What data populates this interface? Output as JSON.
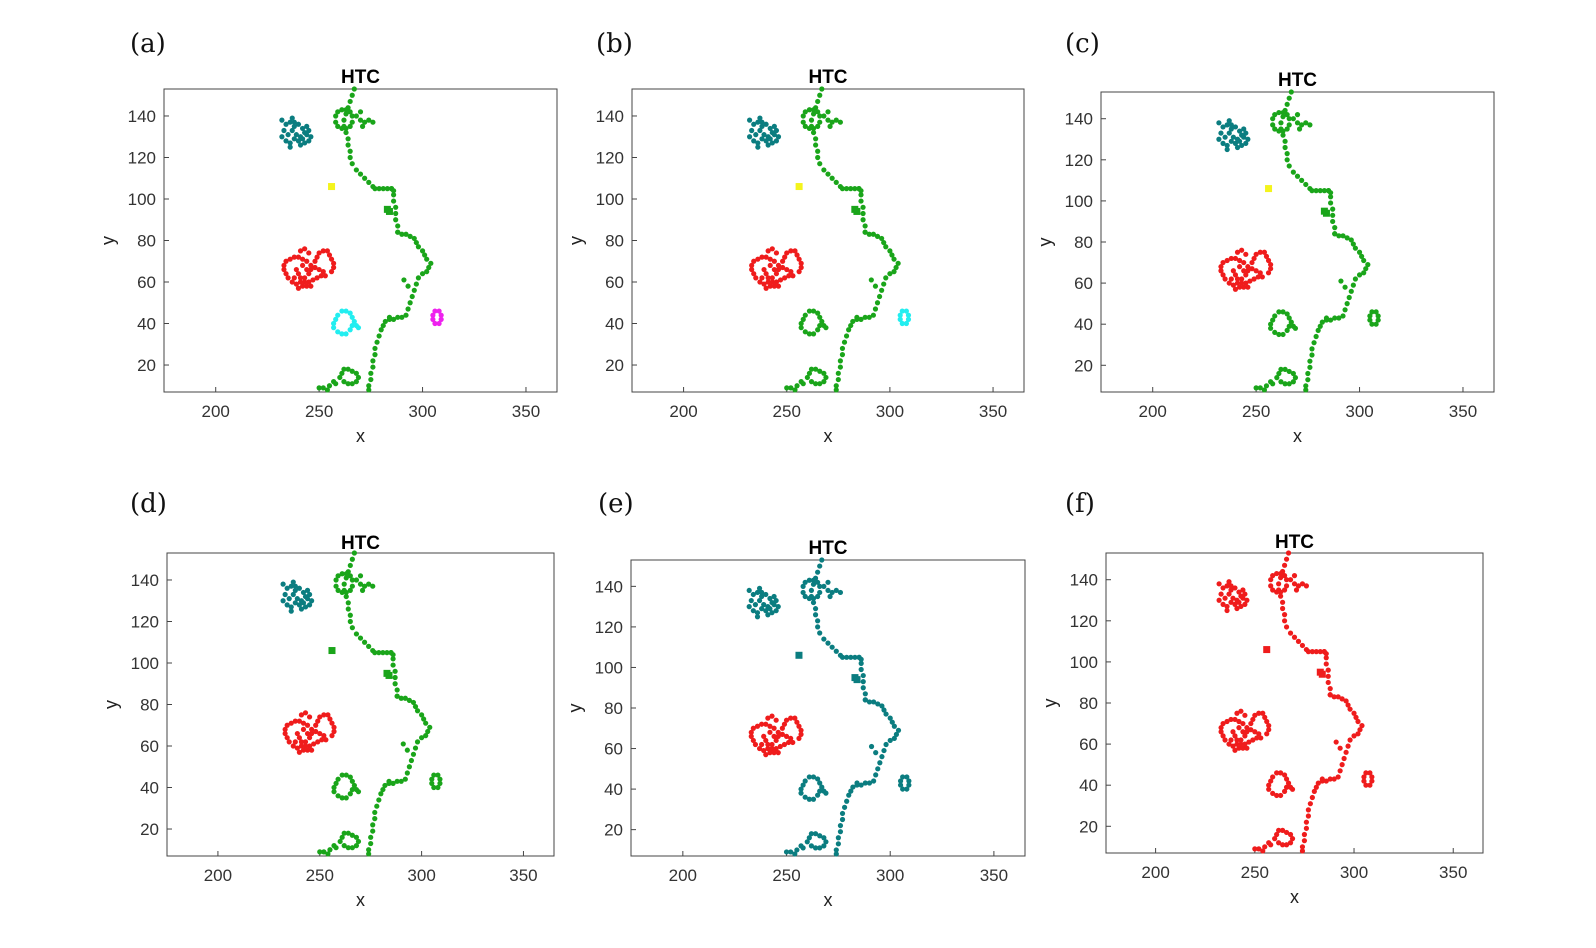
{
  "colors": {
    "green": "#1aa51a",
    "teal": "#0b7d80",
    "red": "#ef1c1c",
    "yellow": "#f4f41c",
    "cyan": "#22eef0",
    "magenta": "#ee22ee"
  },
  "chart_data": [
    {
      "type": "scatter",
      "panel_label": "(a)",
      "title": "HTC",
      "xlabel": "x",
      "ylabel": "y",
      "xlim": [
        175,
        365
      ],
      "ylim": [
        7,
        153
      ],
      "xticks": [
        "200",
        "250",
        "300",
        "350"
      ],
      "yticks": [
        "20",
        "40",
        "60",
        "80",
        "100",
        "120",
        "140"
      ],
      "grid": false,
      "clusters": {
        "teal_blob": "teal",
        "green_line": "green",
        "yellow_dot": "yellow",
        "small_square": "green",
        "red_blob": "red",
        "left_ring": "cyan",
        "right_ring": "magenta",
        "bottom_ring": "green"
      }
    },
    {
      "type": "scatter",
      "panel_label": "(b)",
      "title": "HTC",
      "xlabel": "x",
      "ylabel": "y",
      "xlim": [
        175,
        365
      ],
      "ylim": [
        7,
        153
      ],
      "xticks": [
        "200",
        "250",
        "300",
        "350"
      ],
      "yticks": [
        "20",
        "40",
        "60",
        "80",
        "100",
        "120",
        "140"
      ],
      "grid": false,
      "clusters": {
        "teal_blob": "teal",
        "green_line": "green",
        "yellow_dot": "yellow",
        "small_square": "green",
        "red_blob": "red",
        "left_ring": "green",
        "right_ring": "cyan",
        "bottom_ring": "green"
      }
    },
    {
      "type": "scatter",
      "panel_label": "(c)",
      "title": "HTC",
      "xlabel": "x",
      "ylabel": "y",
      "xlim": [
        175,
        365
      ],
      "ylim": [
        7,
        153
      ],
      "xticks": [
        "200",
        "250",
        "300",
        "350"
      ],
      "yticks": [
        "20",
        "40",
        "60",
        "80",
        "100",
        "120",
        "140"
      ],
      "grid": false,
      "clusters": {
        "teal_blob": "teal",
        "green_line": "green",
        "yellow_dot": "yellow",
        "small_square": "green",
        "red_blob": "red",
        "left_ring": "green",
        "right_ring": "green",
        "bottom_ring": "green"
      }
    },
    {
      "type": "scatter",
      "panel_label": "(d)",
      "title": "HTC",
      "xlabel": "x",
      "ylabel": "y",
      "xlim": [
        175,
        365
      ],
      "ylim": [
        7,
        153
      ],
      "xticks": [
        "200",
        "250",
        "300",
        "350"
      ],
      "yticks": [
        "20",
        "40",
        "60",
        "80",
        "100",
        "120",
        "140"
      ],
      "grid": false,
      "clusters": {
        "teal_blob": "teal",
        "green_line": "green",
        "yellow_dot": "green",
        "small_square": "green",
        "red_blob": "red",
        "left_ring": "green",
        "right_ring": "green",
        "bottom_ring": "green"
      }
    },
    {
      "type": "scatter",
      "panel_label": "(e)",
      "title": "HTC",
      "xlabel": "x",
      "ylabel": "y",
      "xlim": [
        175,
        365
      ],
      "ylim": [
        7,
        153
      ],
      "xticks": [
        "200",
        "250",
        "300",
        "350"
      ],
      "yticks": [
        "20",
        "40",
        "60",
        "80",
        "100",
        "120",
        "140"
      ],
      "grid": false,
      "clusters": {
        "teal_blob": "teal",
        "green_line": "teal",
        "yellow_dot": "teal",
        "small_square": "teal",
        "red_blob": "red",
        "left_ring": "teal",
        "right_ring": "teal",
        "bottom_ring": "teal"
      }
    },
    {
      "type": "scatter",
      "panel_label": "(f)",
      "title": "HTC",
      "xlabel": "x",
      "ylabel": "y",
      "xlim": [
        175,
        365
      ],
      "ylim": [
        7,
        153
      ],
      "xticks": [
        "200",
        "250",
        "300",
        "350"
      ],
      "yticks": [
        "20",
        "40",
        "60",
        "80",
        "100",
        "120",
        "140"
      ],
      "grid": false,
      "clusters": {
        "teal_blob": "red",
        "green_line": "red",
        "yellow_dot": "red",
        "small_square": "red",
        "red_blob": "red",
        "left_ring": "red",
        "right_ring": "red",
        "bottom_ring": "red"
      }
    }
  ],
  "points": {
    "teal_blob": [
      [
        232,
        138
      ],
      [
        234,
        136
      ],
      [
        236,
        137
      ],
      [
        238,
        135
      ],
      [
        240,
        136
      ],
      [
        242,
        134
      ],
      [
        244,
        135
      ],
      [
        243,
        132
      ],
      [
        241,
        130
      ],
      [
        239,
        131
      ],
      [
        237,
        133
      ],
      [
        235,
        131
      ],
      [
        233,
        133
      ],
      [
        232,
        130
      ],
      [
        234,
        128
      ],
      [
        236,
        127
      ],
      [
        238,
        129
      ],
      [
        240,
        128
      ],
      [
        242,
        129
      ],
      [
        244,
        131
      ],
      [
        245,
        133
      ],
      [
        246,
        130
      ],
      [
        245,
        128
      ],
      [
        243,
        127
      ],
      [
        241,
        126
      ],
      [
        236,
        125
      ],
      [
        238,
        137
      ],
      [
        237,
        139
      ]
    ],
    "green_line": [
      [
        267,
        153
      ],
      [
        266,
        150
      ],
      [
        265,
        147
      ],
      [
        264,
        144
      ],
      [
        263,
        141
      ],
      [
        262,
        138
      ],
      [
        262,
        135
      ],
      [
        263,
        132
      ],
      [
        264,
        129
      ],
      [
        264,
        126
      ],
      [
        265,
        123
      ],
      [
        265,
        120
      ],
      [
        266,
        117
      ],
      [
        268,
        114
      ],
      [
        270,
        112
      ],
      [
        272,
        110
      ],
      [
        274,
        108
      ],
      [
        276,
        106
      ],
      [
        277,
        105
      ],
      [
        279,
        105
      ],
      [
        281,
        105
      ],
      [
        283,
        105
      ],
      [
        285,
        105
      ],
      [
        286,
        102
      ],
      [
        286,
        99
      ],
      [
        287,
        96
      ],
      [
        287,
        93
      ],
      [
        287,
        90
      ],
      [
        288,
        87
      ],
      [
        288,
        84
      ],
      [
        290,
        83
      ],
      [
        292,
        83
      ],
      [
        294,
        82
      ],
      [
        296,
        81
      ],
      [
        297,
        79
      ],
      [
        298,
        77
      ],
      [
        300,
        75
      ],
      [
        301,
        73
      ],
      [
        302,
        71
      ],
      [
        304,
        69
      ],
      [
        303,
        67
      ],
      [
        302,
        65
      ],
      [
        300,
        64
      ],
      [
        298,
        62
      ],
      [
        297,
        59
      ],
      [
        296,
        56
      ],
      [
        295,
        53
      ],
      [
        294,
        50
      ],
      [
        293,
        47
      ],
      [
        292,
        44
      ],
      [
        290,
        43
      ],
      [
        288,
        43
      ],
      [
        286,
        42
      ],
      [
        284,
        42
      ],
      [
        282,
        41
      ],
      [
        281,
        39
      ],
      [
        280,
        37
      ],
      [
        279,
        34
      ],
      [
        278,
        31
      ],
      [
        277,
        28
      ],
      [
        277,
        25
      ],
      [
        276,
        22
      ],
      [
        276,
        19
      ],
      [
        275,
        16
      ],
      [
        275,
        13
      ],
      [
        274,
        10
      ],
      [
        274,
        8
      ],
      [
        288,
        84
      ],
      [
        284,
        43
      ],
      [
        285,
        105
      ],
      [
        286,
        104
      ],
      [
        291,
        61
      ],
      [
        293,
        58
      ]
    ],
    "green_upper_ring": [
      [
        258,
        140
      ],
      [
        259,
        142
      ],
      [
        261,
        143
      ],
      [
        263,
        143
      ],
      [
        265,
        142
      ],
      [
        266,
        140
      ],
      [
        266,
        137
      ],
      [
        265,
        135
      ],
      [
        263,
        134
      ],
      [
        261,
        134
      ],
      [
        259,
        135
      ],
      [
        258,
        137
      ],
      [
        268,
        140
      ],
      [
        270,
        138
      ],
      [
        272,
        137
      ],
      [
        274,
        138
      ],
      [
        276,
        137
      ],
      [
        270,
        142
      ],
      [
        271,
        135
      ]
    ],
    "yellow_dot": [
      [
        256,
        106
      ]
    ],
    "small_square": [
      [
        283,
        95
      ],
      [
        284,
        94
      ]
    ],
    "red_blob": [
      [
        234,
        70
      ],
      [
        236,
        71
      ],
      [
        238,
        72
      ],
      [
        240,
        72
      ],
      [
        242,
        71
      ],
      [
        244,
        70
      ],
      [
        246,
        68
      ],
      [
        246,
        66
      ],
      [
        245,
        64
      ],
      [
        243,
        62
      ],
      [
        241,
        60
      ],
      [
        239,
        59
      ],
      [
        237,
        60
      ],
      [
        235,
        62
      ],
      [
        234,
        64
      ],
      [
        233,
        66
      ],
      [
        233,
        68
      ],
      [
        239,
        66
      ],
      [
        240,
        64
      ],
      [
        241,
        62
      ],
      [
        243,
        60
      ],
      [
        245,
        60
      ],
      [
        247,
        61
      ],
      [
        249,
        62
      ],
      [
        251,
        63
      ],
      [
        253,
        63
      ],
      [
        252,
        65
      ],
      [
        250,
        66
      ],
      [
        248,
        67
      ],
      [
        248,
        70
      ],
      [
        249,
        72
      ],
      [
        250,
        74
      ],
      [
        252,
        75
      ],
      [
        254,
        75
      ],
      [
        255,
        73
      ],
      [
        256,
        71
      ],
      [
        257,
        69
      ],
      [
        257,
        67
      ],
      [
        256,
        65
      ],
      [
        241,
        75
      ],
      [
        243,
        76
      ],
      [
        245,
        74
      ],
      [
        244,
        66
      ],
      [
        242,
        68
      ],
      [
        238,
        62
      ],
      [
        240,
        57
      ],
      [
        242,
        58
      ],
      [
        244,
        58
      ],
      [
        246,
        58
      ]
    ],
    "left_ring": [
      [
        261,
        46
      ],
      [
        263,
        46
      ],
      [
        265,
        45
      ],
      [
        266,
        43
      ],
      [
        267,
        41
      ],
      [
        266,
        39
      ],
      [
        265,
        37
      ],
      [
        263,
        35
      ],
      [
        261,
        35
      ],
      [
        259,
        36
      ],
      [
        257,
        38
      ],
      [
        257,
        40
      ],
      [
        258,
        42
      ],
      [
        259,
        44
      ],
      [
        268,
        39
      ],
      [
        269,
        38
      ]
    ],
    "right_ring": [
      [
        306,
        46
      ],
      [
        308,
        46
      ],
      [
        309,
        44
      ],
      [
        309,
        42
      ],
      [
        308,
        40
      ],
      [
        306,
        40
      ],
      [
        305,
        42
      ],
      [
        305,
        44
      ]
    ],
    "bottom_ring": [
      [
        262,
        18
      ],
      [
        264,
        18
      ],
      [
        266,
        17
      ],
      [
        268,
        16
      ],
      [
        269,
        14
      ],
      [
        268,
        12
      ],
      [
        266,
        11
      ],
      [
        264,
        11
      ],
      [
        262,
        12
      ],
      [
        260,
        14
      ],
      [
        261,
        16
      ],
      [
        257,
        12
      ],
      [
        255,
        10
      ],
      [
        258,
        11
      ],
      [
        252,
        9
      ],
      [
        250,
        9
      ],
      [
        254,
        8
      ]
    ]
  }
}
